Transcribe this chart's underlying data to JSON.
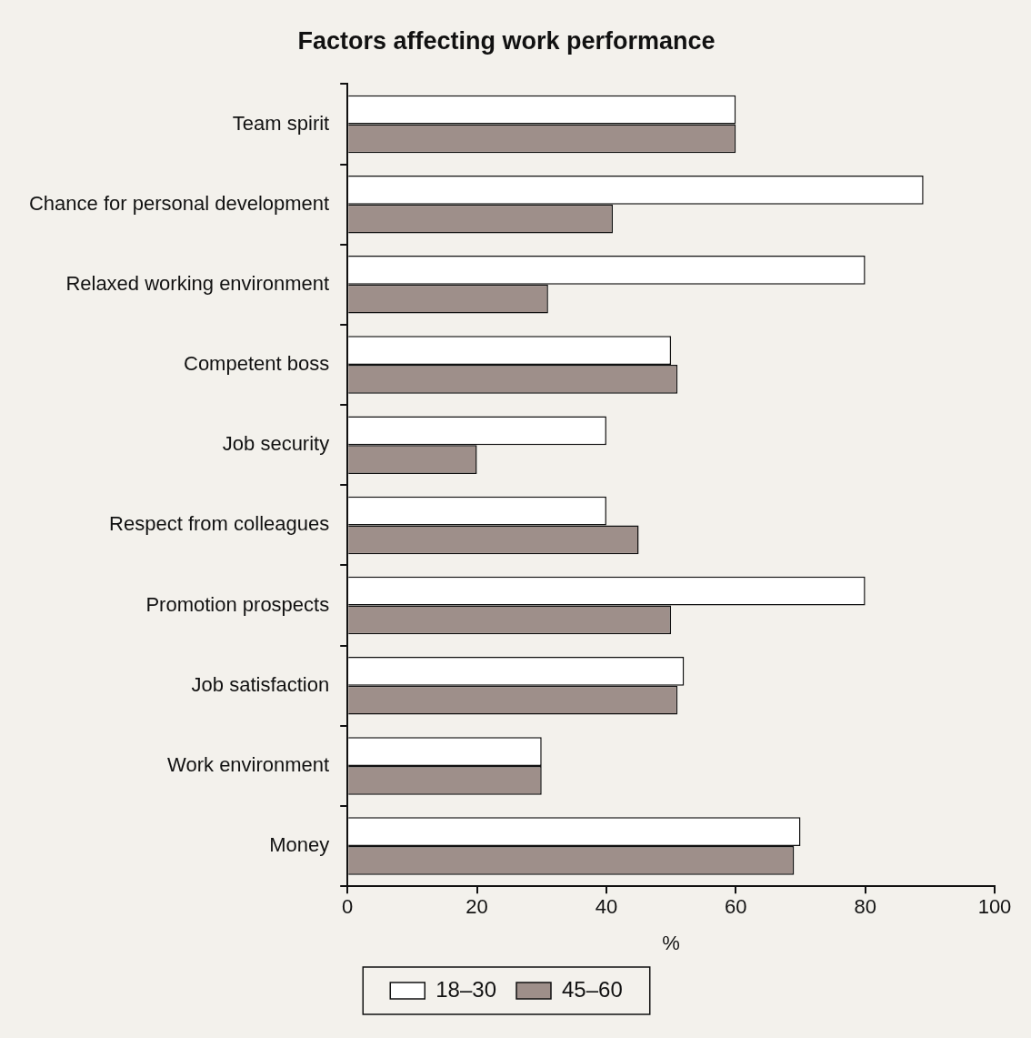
{
  "chart_data": {
    "type": "bar",
    "orientation": "horizontal",
    "title": "Factors affecting work performance",
    "xlabel": "%",
    "categories": [
      "Team spirit",
      "Chance for personal development",
      "Relaxed working environment",
      "Competent boss",
      "Job security",
      "Respect from colleagues",
      "Promotion prospects",
      "Job satisfaction",
      "Work environment",
      "Money"
    ],
    "series": [
      {
        "name": "18–30",
        "color": "#ffffff",
        "values": [
          60,
          89,
          80,
          50,
          40,
          40,
          80,
          52,
          30,
          70
        ]
      },
      {
        "name": "45–60",
        "color": "#9e8f8a",
        "values": [
          60,
          41,
          31,
          51,
          20,
          45,
          50,
          51,
          30,
          69
        ]
      }
    ],
    "xlim": [
      0,
      100
    ],
    "xticks": [
      0,
      20,
      40,
      60,
      80,
      100
    ],
    "grid": false,
    "legend": "bottom"
  }
}
